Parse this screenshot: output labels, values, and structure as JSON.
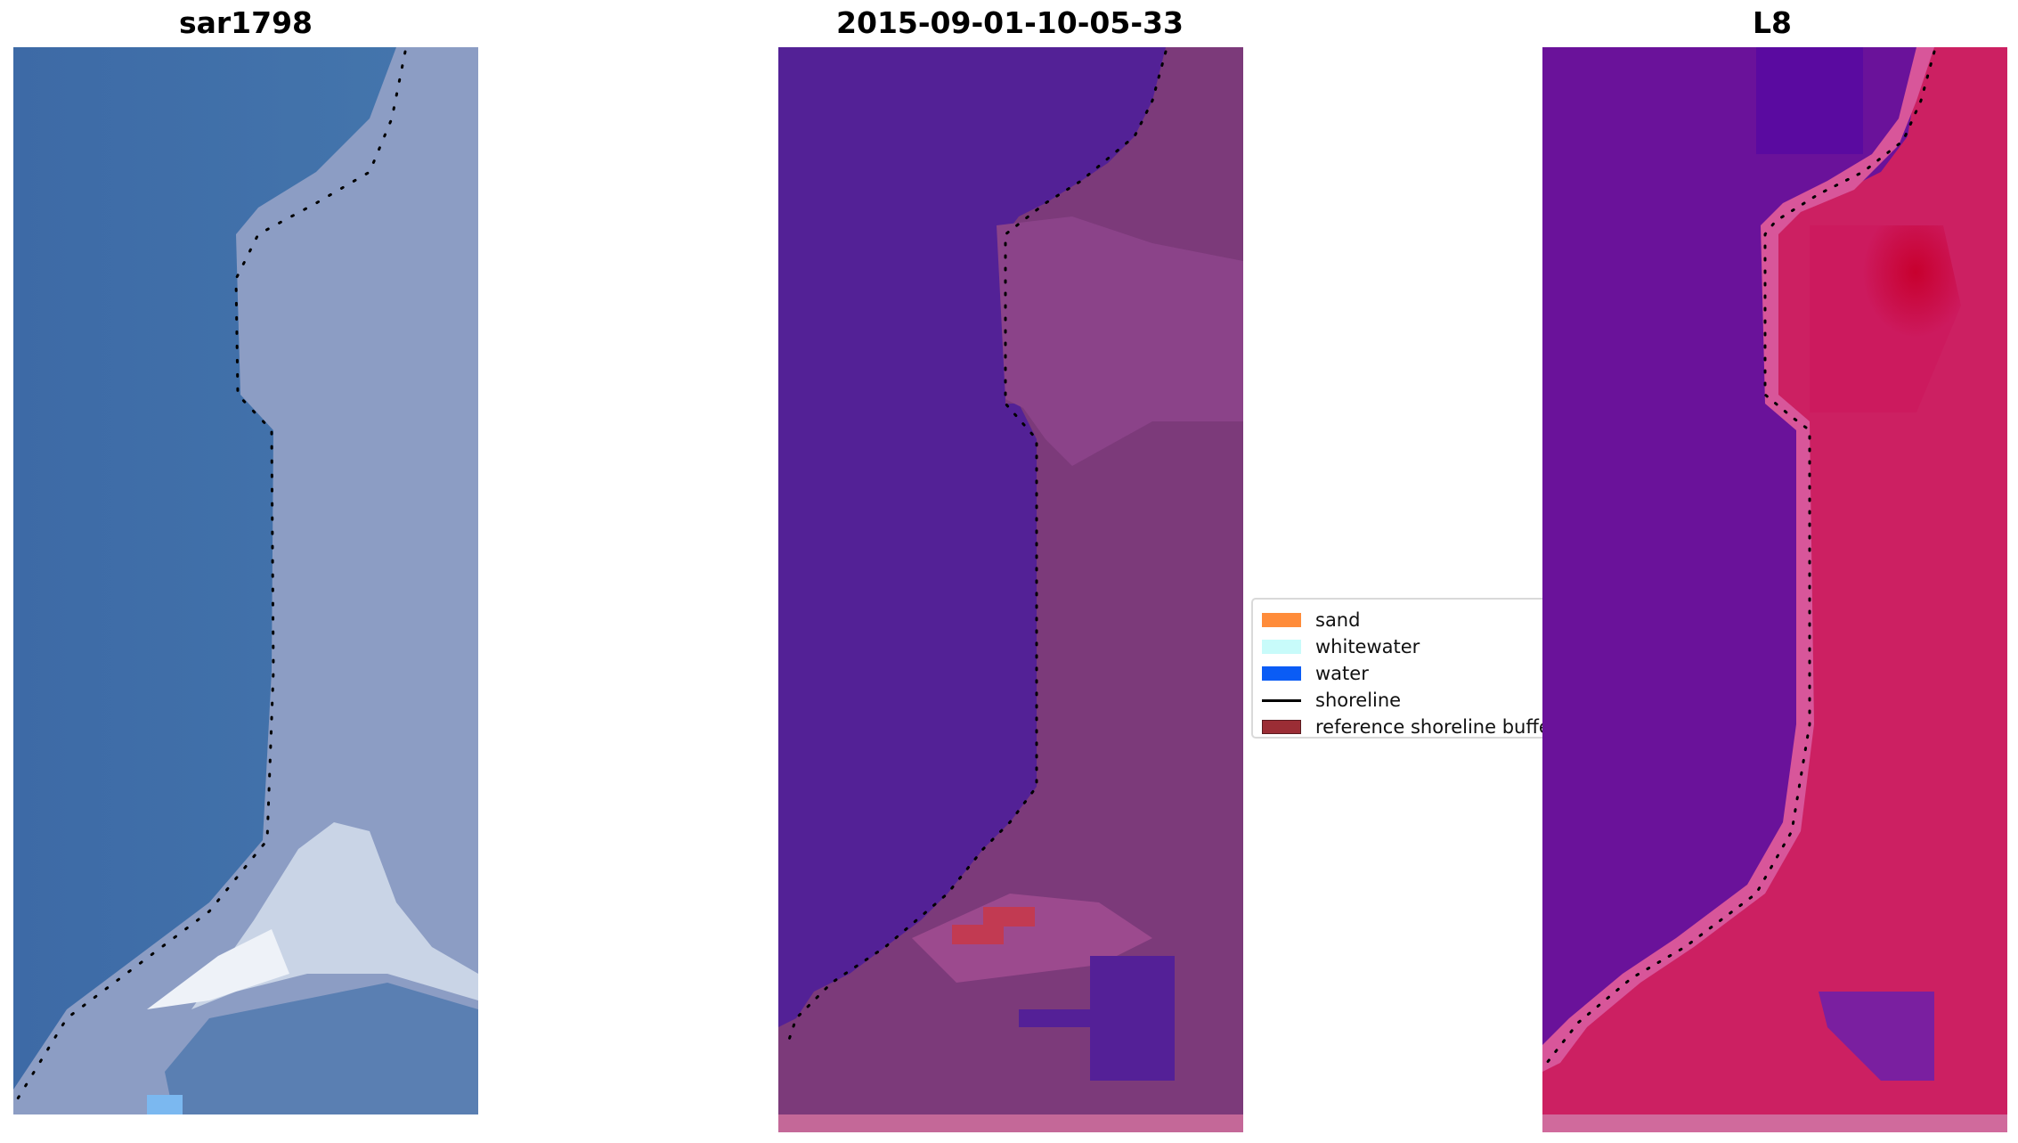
{
  "panels": [
    {
      "title": "sar1798"
    },
    {
      "title": "2015-09-01-10-05-33"
    },
    {
      "title": "L8"
    }
  ],
  "legend": {
    "items": [
      {
        "label": "sand",
        "color": "#ff8c3a",
        "kind": "patch"
      },
      {
        "label": "whitewater",
        "color": "#c8fbfa",
        "kind": "patch"
      },
      {
        "label": "water",
        "color": "#0a5cf5",
        "kind": "patch"
      },
      {
        "label": "shoreline",
        "color": "#000000",
        "kind": "line"
      },
      {
        "label": "reference shoreline buffer",
        "color": "#9b2d35",
        "kind": "patch"
      }
    ]
  },
  "colors": {
    "panel1_water": "#3f6fa8",
    "panel1_land": "#8f9fc6",
    "panel2_water": "#532196",
    "panel2_land": "#7e3a78",
    "panel3_water": "#6a129a",
    "panel3_land": "#c7165a"
  }
}
